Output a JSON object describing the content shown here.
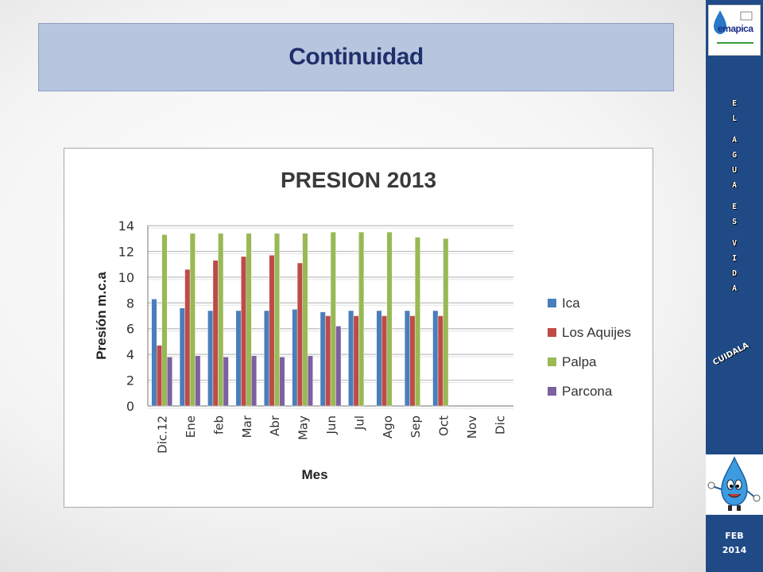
{
  "slide": {
    "title": "Continuidad",
    "sidebar": {
      "logo_text": "emapica",
      "slogan_letters": [
        "E",
        "L",
        "",
        "A",
        "G",
        "U",
        "A",
        "",
        "E",
        "S",
        "",
        "V",
        "I",
        "D",
        "A"
      ],
      "cuidala": "CUIDALA",
      "date_month": "FEB",
      "date_year": "2014"
    }
  },
  "colors": {
    "title_box": "#b8c5df",
    "title_text": "#1f2f6b",
    "sidebar": "#1f4a86",
    "Ica": "#4a7ebb",
    "Los Aquijes": "#be4b48",
    "Palpa": "#98b954",
    "Parcona": "#7d60a0"
  },
  "chart_data": {
    "type": "bar",
    "title": "PRESION 2013",
    "xlabel": "Mes",
    "ylabel": "Presión m.c.a",
    "ylim": [
      0,
      14
    ],
    "yticks": [
      0,
      2,
      4,
      6,
      8,
      10,
      12,
      14
    ],
    "grid": true,
    "legend": "right",
    "categories": [
      "Dic.12",
      "Ene",
      "feb",
      "Mar",
      "Abr",
      "May",
      "Jun",
      "Jul",
      "Ago",
      "Sep",
      "Oct",
      "Nov",
      "Dic"
    ],
    "series": [
      {
        "name": "Ica",
        "values": [
          8.3,
          7.6,
          7.4,
          7.4,
          7.4,
          7.5,
          7.3,
          7.4,
          7.4,
          7.4,
          7.4,
          null,
          null
        ]
      },
      {
        "name": "Los Aquijes",
        "values": [
          4.7,
          10.6,
          11.3,
          11.6,
          11.7,
          11.1,
          7.0,
          7.0,
          7.0,
          7.0,
          7.0,
          null,
          null
        ]
      },
      {
        "name": "Palpa",
        "values": [
          13.3,
          13.4,
          13.4,
          13.4,
          13.4,
          13.4,
          13.5,
          13.5,
          13.5,
          13.1,
          13.0,
          null,
          null
        ]
      },
      {
        "name": "Parcona",
        "values": [
          3.8,
          3.9,
          3.8,
          3.9,
          3.8,
          3.9,
          6.2,
          null,
          null,
          null,
          null,
          null,
          null
        ]
      }
    ]
  }
}
